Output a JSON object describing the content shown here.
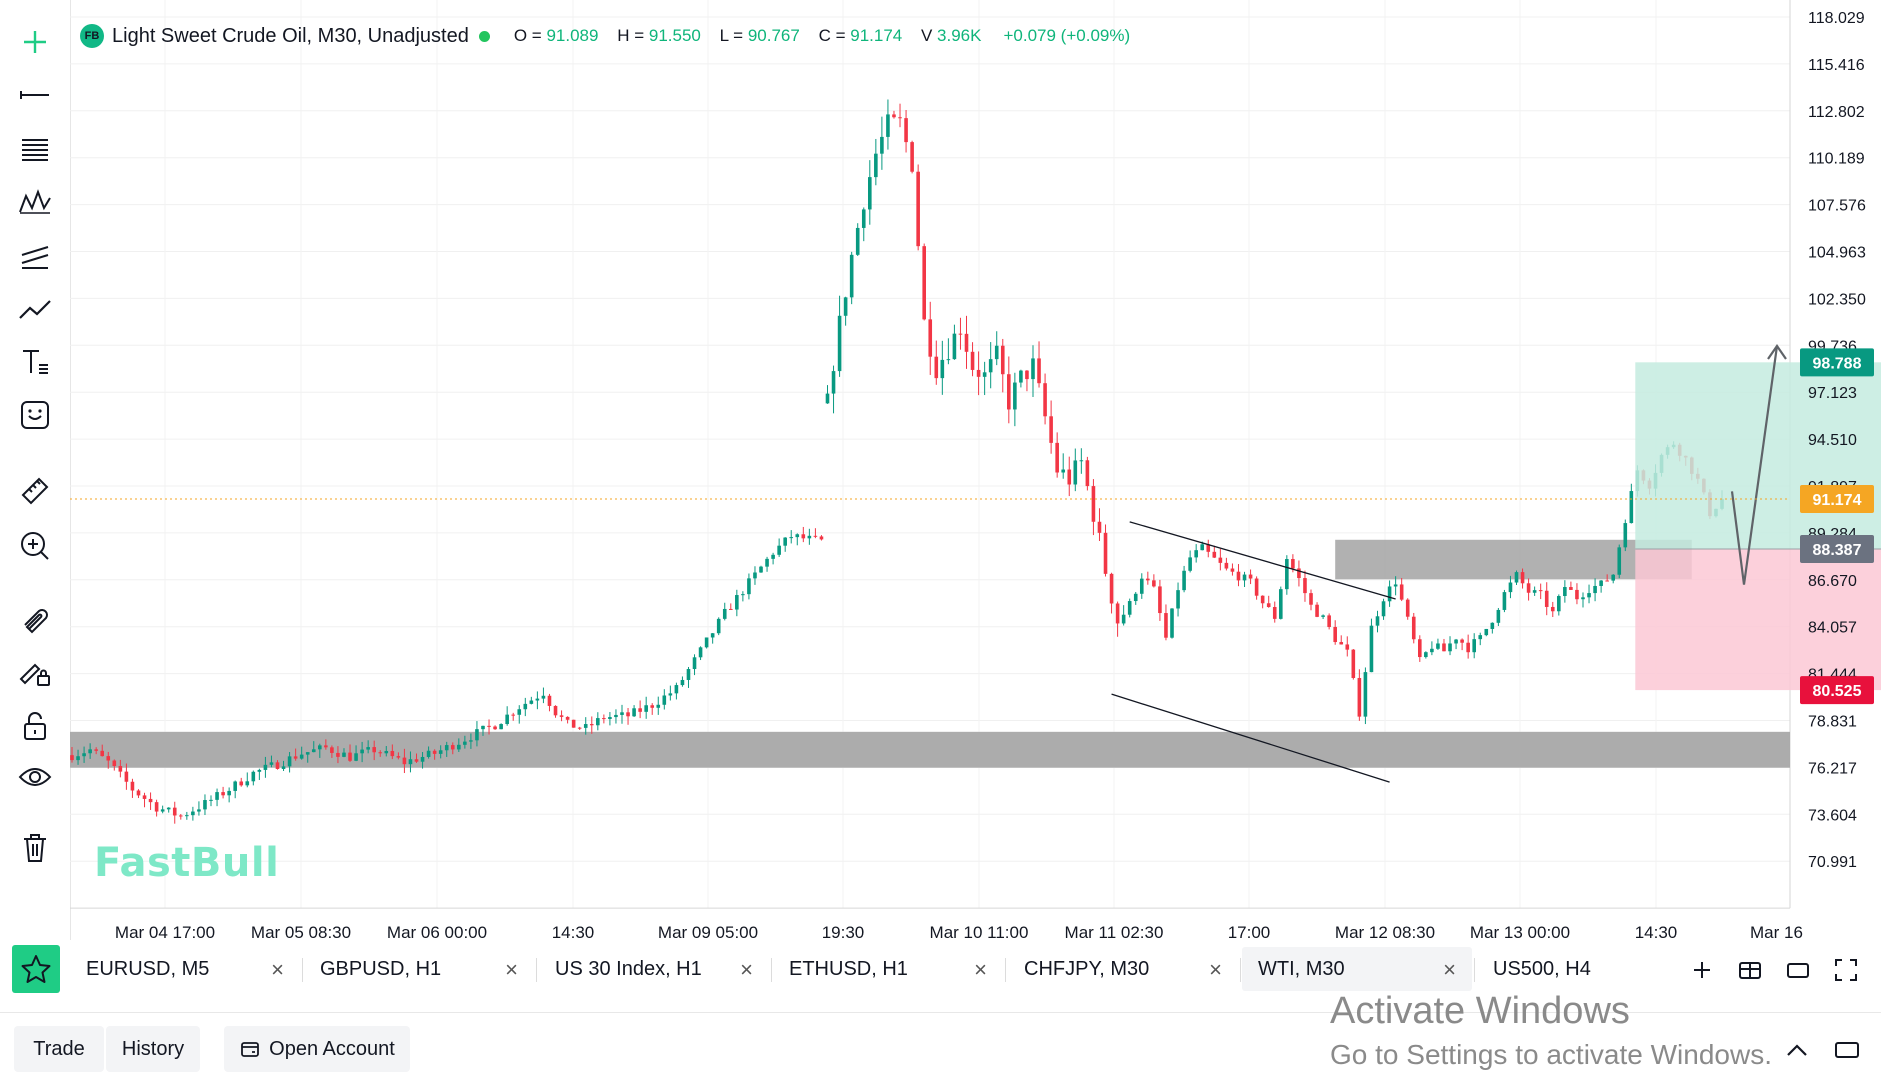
{
  "legend": {
    "badge": "FB",
    "title": "Light Sweet Crude Oil, M30, Unadjusted",
    "open_label": "O =",
    "open": "91.089",
    "high_label": "H =",
    "high": "91.550",
    "low_label": "L =",
    "low": "90.767",
    "close_label": "C =",
    "close": "91.174",
    "volume_label": "V",
    "volume": "3.96K",
    "change": "+0.079 (+0.09%)"
  },
  "watermark": "FastBull",
  "toolbar": {
    "tools": [
      "crosshair-icon",
      "horizontal-line-icon",
      "fib-lines-icon",
      "pattern-icon",
      "channel-icon",
      "trend-line-icon",
      "text-tool-icon",
      "emoji-icon",
      "ruler-icon",
      "zoom-in-icon",
      "magnet-icon",
      "lock-drawing-icon",
      "lock-icon",
      "eye-icon",
      "trash-icon"
    ]
  },
  "chart_data": {
    "type": "candlestick",
    "symbol": "Light Sweet Crude Oil",
    "timeframe": "M30",
    "y_ticks": [
      "118.029",
      "115.416",
      "112.802",
      "110.189",
      "107.576",
      "104.963",
      "102.350",
      "99.736",
      "97.123",
      "94.510",
      "91.897",
      "89.284",
      "86.670",
      "84.057",
      "81.444",
      "78.831",
      "76.217",
      "73.604",
      "70.991"
    ],
    "ylim": [
      68.378,
      118.029
    ],
    "x_ticks": [
      "Mar 04 17:00",
      "Mar 05 08:30",
      "Mar 06 00:00",
      "14:30",
      "Mar 09 05:00",
      "19:30",
      "Mar 10 11:00",
      "Mar 11 02:30",
      "17:00",
      "Mar 12 08:30",
      "Mar 13 00:00",
      "14:30",
      "Mar 16"
    ],
    "price_labels": [
      {
        "value": "98.788",
        "color": "#089981"
      },
      {
        "value": "91.174",
        "color": "#f5a623"
      },
      {
        "value": "88.387",
        "color": "#6b7280"
      },
      {
        "value": "80.525",
        "color": "#e8113c"
      }
    ],
    "current_price": 91.174,
    "anchors": [
      [
        0,
        76.9
      ],
      [
        3,
        77.2
      ],
      [
        6,
        76.5
      ],
      [
        10,
        75.0
      ],
      [
        14,
        74.0
      ],
      [
        18,
        73.5
      ],
      [
        22,
        74.2
      ],
      [
        26,
        75.0
      ],
      [
        30,
        75.9
      ],
      [
        34,
        76.4
      ],
      [
        38,
        77.0
      ],
      [
        42,
        77.3
      ],
      [
        46,
        76.8
      ],
      [
        50,
        77.2
      ],
      [
        55,
        76.5
      ],
      [
        60,
        77.0
      ],
      [
        65,
        77.8
      ],
      [
        70,
        78.6
      ],
      [
        74,
        79.6
      ],
      [
        78,
        80.4
      ],
      [
        80,
        79.3
      ],
      [
        82,
        78.6
      ],
      [
        85,
        78.4
      ],
      [
        88,
        79.0
      ],
      [
        92,
        79.1
      ],
      [
        96,
        79.7
      ],
      [
        100,
        80.6
      ],
      [
        104,
        82.7
      ],
      [
        108,
        84.8
      ],
      [
        112,
        86.5
      ],
      [
        116,
        88.2
      ],
      [
        119,
        89.1
      ],
      [
        124,
        88.8
      ],
      [
        125,
        96.8
      ],
      [
        127,
        100.9
      ],
      [
        129,
        104.7
      ],
      [
        131,
        107.9
      ],
      [
        133,
        110.4
      ],
      [
        135,
        112.0
      ],
      [
        137,
        112.1
      ],
      [
        139,
        109.9
      ],
      [
        141,
        101.0
      ],
      [
        143,
        98.5
      ],
      [
        145,
        99.6
      ],
      [
        147,
        100.8
      ],
      [
        149,
        98.6
      ],
      [
        151,
        98.0
      ],
      [
        153,
        99.1
      ],
      [
        155,
        96.6
      ],
      [
        157,
        97.9
      ],
      [
        159,
        98.6
      ],
      [
        161,
        95.7
      ],
      [
        163,
        92.8
      ],
      [
        165,
        92.3
      ],
      [
        167,
        93.2
      ],
      [
        169,
        90.4
      ],
      [
        171,
        87.2
      ],
      [
        173,
        84.4
      ],
      [
        175,
        85.3
      ],
      [
        177,
        86.9
      ],
      [
        179,
        86.1
      ],
      [
        181,
        83.4
      ],
      [
        183,
        86.2
      ],
      [
        185,
        87.9
      ],
      [
        187,
        88.4
      ],
      [
        189,
        87.8
      ],
      [
        191,
        87.2
      ],
      [
        193,
        86.9
      ],
      [
        195,
        86.5
      ],
      [
        197,
        85.4
      ],
      [
        199,
        84.6
      ],
      [
        201,
        87.9
      ],
      [
        203,
        86.7
      ],
      [
        205,
        85.2
      ],
      [
        207,
        84.5
      ],
      [
        209,
        83.4
      ],
      [
        211,
        82.6
      ],
      [
        213,
        79.3
      ],
      [
        215,
        84.0
      ],
      [
        217,
        85.7
      ],
      [
        219,
        86.6
      ],
      [
        221,
        84.4
      ],
      [
        223,
        82.1
      ],
      [
        225,
        83.0
      ],
      [
        227,
        82.7
      ],
      [
        229,
        83.5
      ],
      [
        231,
        82.9
      ],
      [
        233,
        83.4
      ],
      [
        235,
        84.5
      ],
      [
        237,
        85.9
      ],
      [
        239,
        86.9
      ],
      [
        241,
        86.0
      ],
      [
        243,
        85.8
      ],
      [
        245,
        84.8
      ],
      [
        247,
        86.3
      ],
      [
        249,
        85.7
      ],
      [
        251,
        86.2
      ],
      [
        253,
        86.4
      ],
      [
        255,
        87.0
      ],
      [
        257,
        90.1
      ],
      [
        259,
        92.8
      ],
      [
        261,
        92.0
      ],
      [
        263,
        93.6
      ],
      [
        265,
        94.3
      ],
      [
        267,
        93.4
      ],
      [
        269,
        92.2
      ],
      [
        271,
        90.4
      ],
      [
        273,
        91.174
      ]
    ],
    "zones": [
      {
        "name": "support-zone",
        "y1": 76.2,
        "y2": 78.2,
        "color": "#a8a8a8"
      },
      {
        "name": "resistance-zone",
        "y1": 86.7,
        "y2": 88.9,
        "color": "#a8a8a8"
      }
    ],
    "position": {
      "entry": 88.387,
      "target": 98.788,
      "stop": 80.525
    }
  },
  "tabs": [
    {
      "label": "EURUSD, M5"
    },
    {
      "label": "GBPUSD, H1"
    },
    {
      "label": "US 30 Index, H1"
    },
    {
      "label": "ETHUSD, H1"
    },
    {
      "label": "CHFJPY, M30"
    },
    {
      "label": "WTI, M30",
      "active": true
    },
    {
      "label": "US500, H4"
    }
  ],
  "tab_close": "×",
  "bottom": {
    "trade": "Trade",
    "history": "History",
    "open_account": "Open Account"
  },
  "activate": {
    "line1": "Activate Windows",
    "line2": "Go to Settings to activate Windows."
  },
  "colors": {
    "up": "#089981",
    "down": "#f23645",
    "target_zone": "#c4ebdf",
    "stop_zone": "#fcc8d5",
    "accent": "#1fcc85"
  }
}
